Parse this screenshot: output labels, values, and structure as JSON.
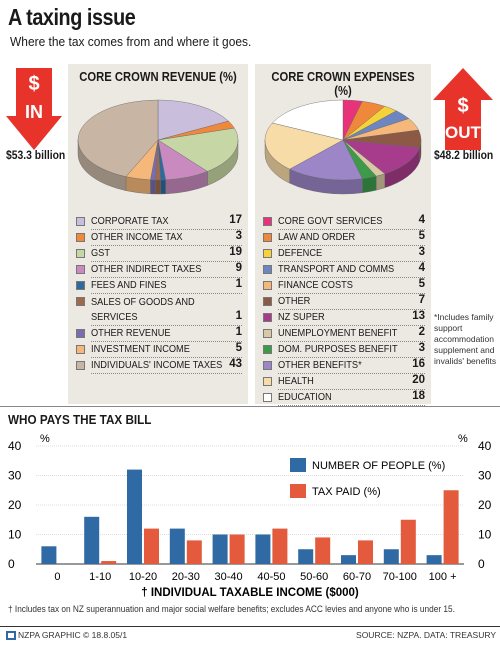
{
  "header": {
    "title": "A taxing issue",
    "subtitle": "Where the tax comes from and where it goes."
  },
  "revenue": {
    "heading": "CORE CROWN REVENUE (%)",
    "arrow_symbol": "$",
    "arrow_label": "IN",
    "arrow_color": "#e8332a",
    "amount": "$53.3 billion"
  },
  "expenses": {
    "heading": "CORE CROWN EXPENSES (%)",
    "arrow_symbol": "$",
    "arrow_label": "OUT",
    "arrow_color": "#e8332a",
    "amount": "$48.2 billion",
    "footnote": "*Includes family support accommodation supplement and invalids' benefits"
  },
  "bar_section": {
    "heading": "WHO PAYS THE TAX BILL",
    "footnote": "† Includes tax on NZ superannuation and major social welfare benefits; excludes ACC levies and anyone who is under 15."
  },
  "footer": {
    "credit": "NZPA GRAPHIC © 18.8.05/1",
    "source": "SOURCE: NZPA.  DATA: TREASURY"
  },
  "chart_data": [
    {
      "type": "pie",
      "title": "CORE CROWN REVENUE (%)",
      "labels": [
        "CORPORATE TAX",
        "OTHER INCOME TAX",
        "GST",
        "OTHER INDIRECT TAXES",
        "FEES AND FINES",
        "SALES OF GOODS AND SERVICES",
        "OTHER REVENUE",
        "INVESTMENT INCOME",
        "INDIVIDUALS' INCOME TAXES"
      ],
      "values": [
        17,
        3,
        19,
        9,
        1,
        1,
        1,
        5,
        43
      ],
      "colors": [
        "#c9bfdc",
        "#f0883c",
        "#c6d6a4",
        "#c98bbf",
        "#2c6aa0",
        "#9e6b4e",
        "#7a6cb0",
        "#f5b87a",
        "#c8b5a4"
      ]
    },
    {
      "type": "pie",
      "title": "CORE CROWN EXPENSES (%)",
      "labels": [
        "CORE GOVT SERVICES",
        "LAW AND ORDER",
        "DEFENCE",
        "TRANSPORT AND COMMS",
        "FINANCE COSTS",
        "OTHER",
        "NZ SUPER",
        "UNEMPLOYMENT BENEFIT",
        "DOM. PURPOSES BENEFIT",
        "OTHER BENEFITS*",
        "HEALTH",
        "EDUCATION"
      ],
      "values": [
        4,
        5,
        3,
        4,
        5,
        7,
        13,
        2,
        3,
        16,
        20,
        18
      ],
      "colors": [
        "#e8337a",
        "#f0883c",
        "#f5d23a",
        "#6d86c0",
        "#f5b87a",
        "#8c5a44",
        "#a83c8c",
        "#d8c8a4",
        "#3c9a4a",
        "#9c86c8",
        "#f8dca8",
        "#ffffff"
      ]
    },
    {
      "type": "bar",
      "xlabel": "† INDIVIDUAL TAXABLE INCOME ($000)",
      "ylabel_left": "%",
      "ylabel_right": "%",
      "ylim": [
        0,
        40
      ],
      "yticks": [
        0,
        10,
        20,
        30,
        40
      ],
      "categories": [
        "0",
        "1-10",
        "10-20",
        "20-30",
        "30-40",
        "40-50",
        "50-60",
        "60-70",
        "70-100",
        "100 +"
      ],
      "series": [
        {
          "name": "NUMBER OF PEOPLE (%)",
          "color": "#2f6aa4",
          "values": [
            6,
            16,
            32,
            12,
            10,
            10,
            5,
            3,
            5,
            3
          ]
        },
        {
          "name": "TAX PAID (%)",
          "color": "#e35a3c",
          "values": [
            0,
            1,
            12,
            8,
            10,
            12,
            9,
            8,
            15,
            25
          ]
        }
      ]
    }
  ]
}
